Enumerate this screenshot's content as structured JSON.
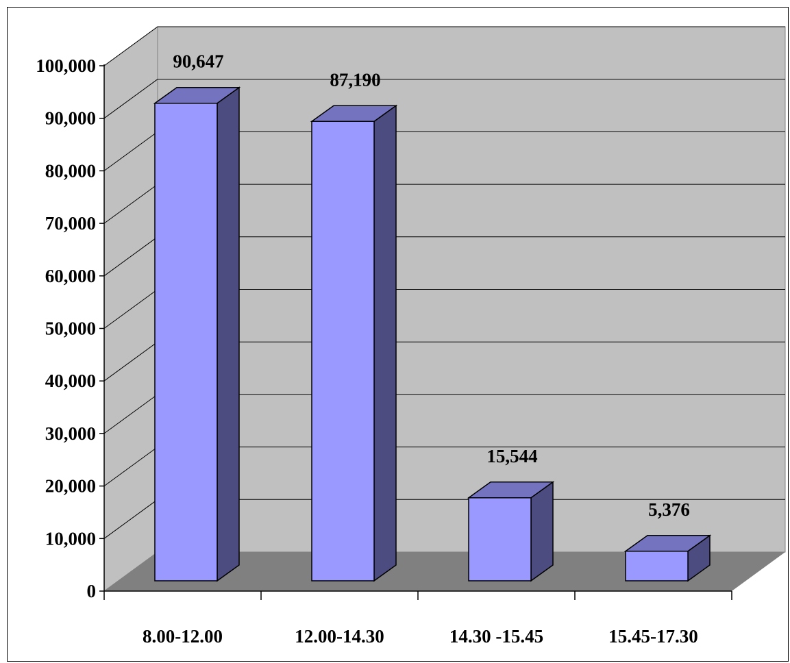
{
  "chart_data": {
    "type": "bar",
    "categories": [
      "8.00-12.00",
      "12.00-14.30",
      "14.30 -15.45",
      "15.45-17.30"
    ],
    "values": [
      90647,
      87190,
      15544,
      5376
    ],
    "value_labels": [
      "90,647",
      "87,190",
      "15,544",
      "5,376"
    ],
    "ylim": [
      0,
      100000
    ],
    "y_ticks": [
      0,
      10000,
      20000,
      30000,
      40000,
      50000,
      60000,
      70000,
      80000,
      90000,
      100000
    ],
    "y_tick_labels": [
      "0",
      "10,000",
      "20,000",
      "30,000",
      "40,000",
      "50,000",
      "60,000",
      "70,000",
      "80,000",
      "90,000",
      "100,000"
    ],
    "grid": true,
    "three_d": true,
    "legend": "none",
    "colors": {
      "bar_front": "#9999ff",
      "bar_side": "#4c4c80",
      "bar_top": "#7373c0",
      "back_wall": "#c0c0c0",
      "side_wall": "#c0c0c0",
      "floor": "#808080",
      "grid_line": "#000000"
    }
  }
}
